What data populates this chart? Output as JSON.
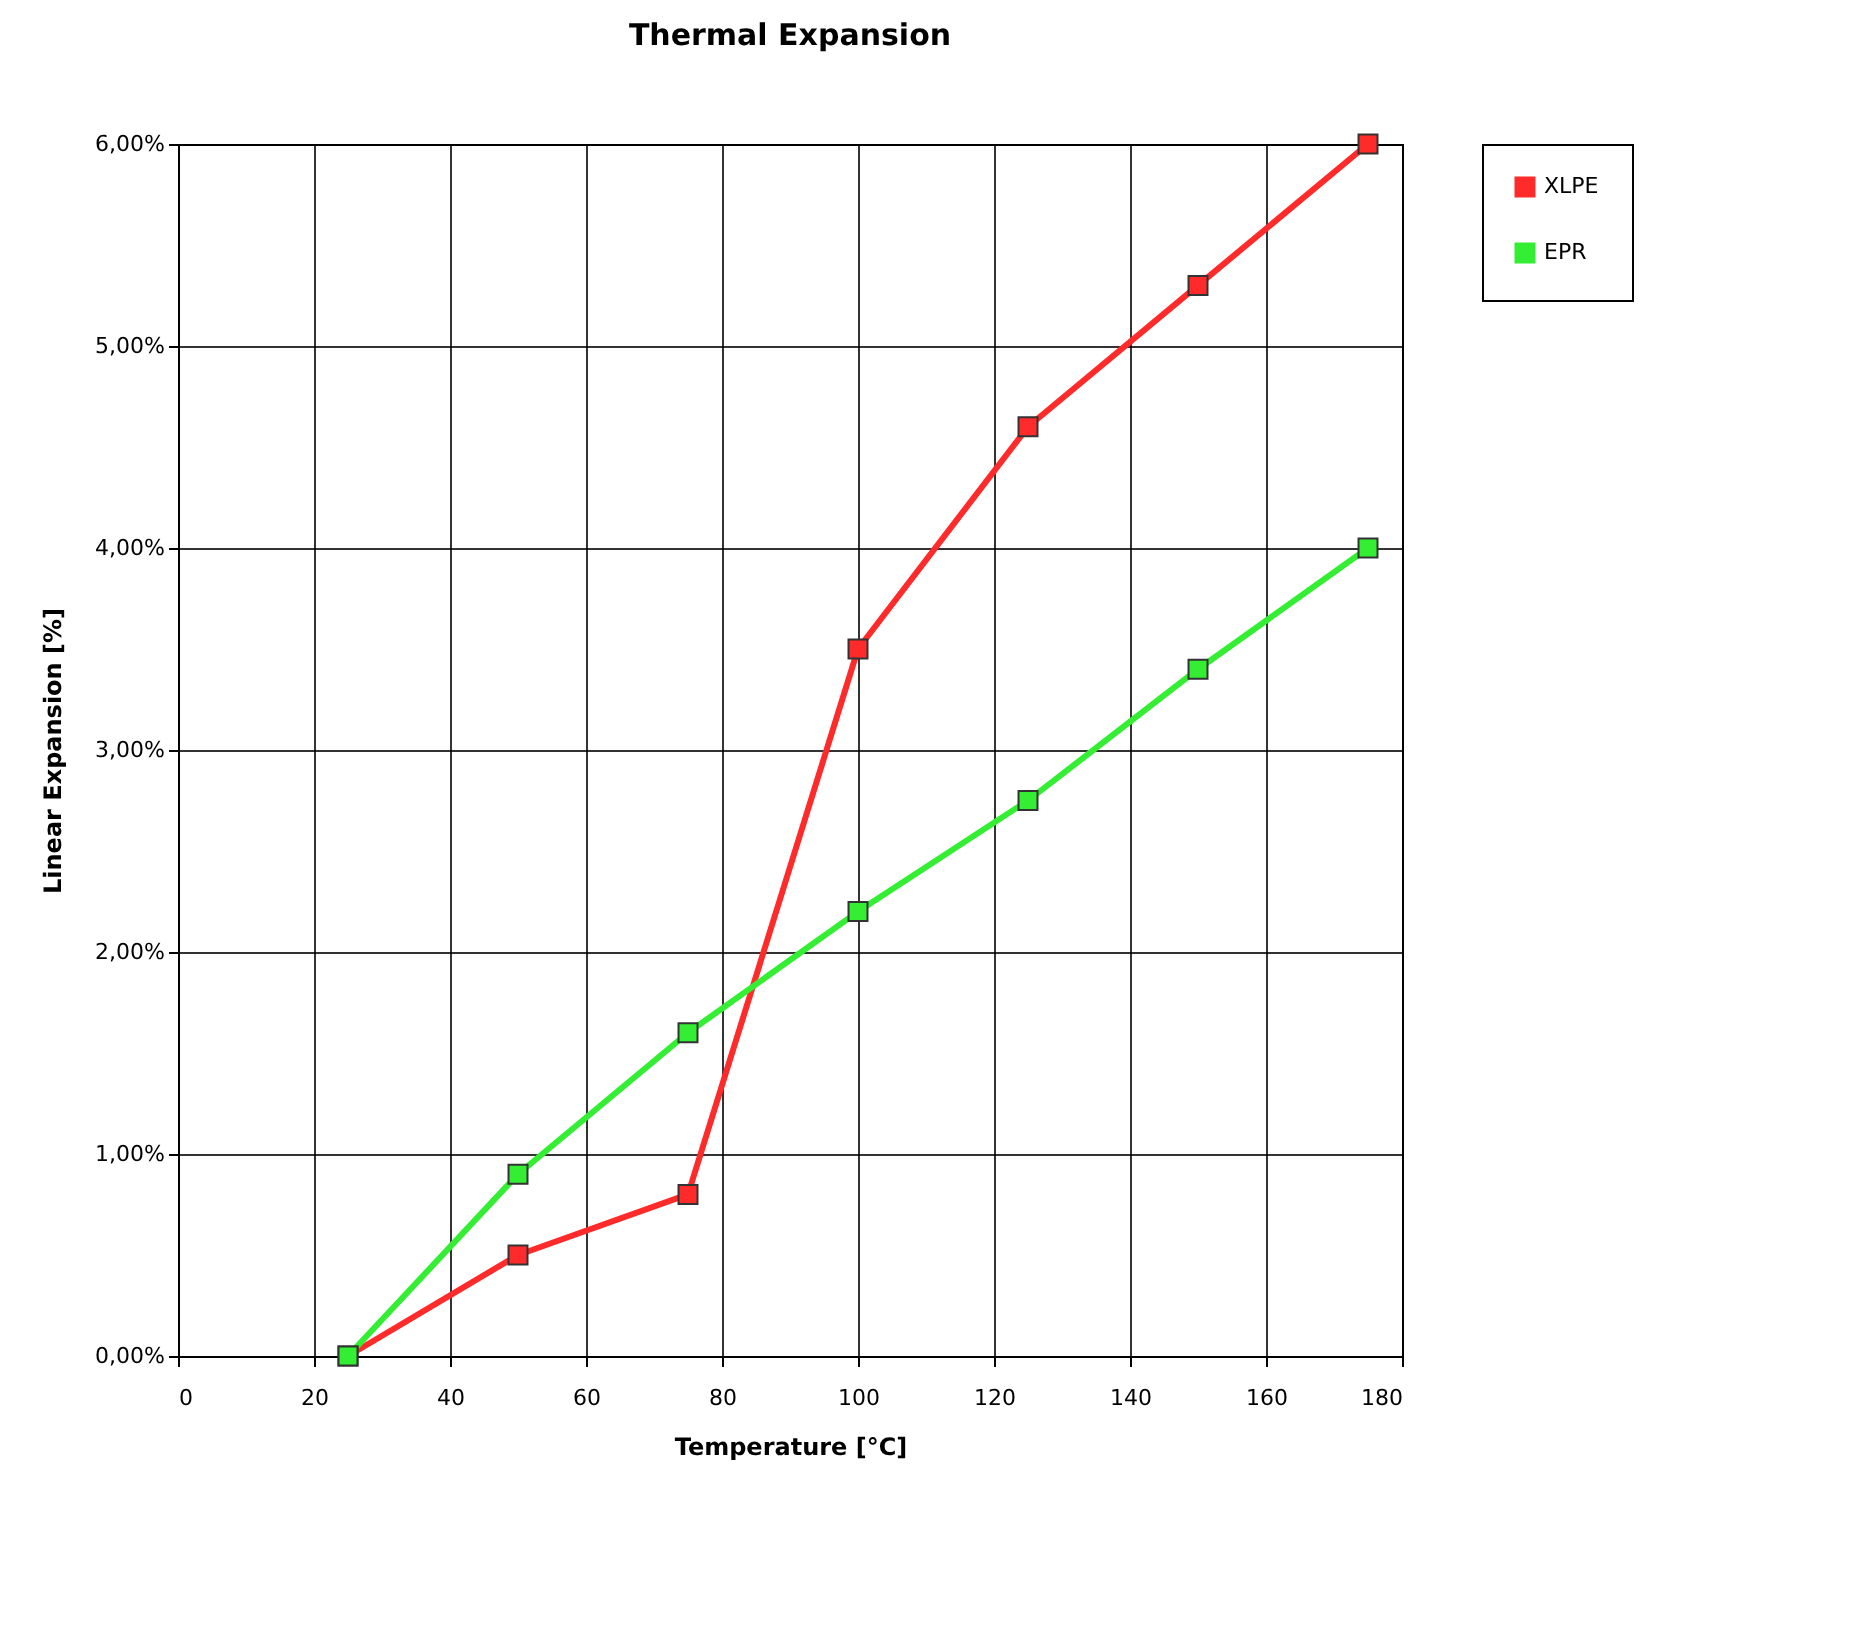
{
  "chart_data": {
    "type": "line",
    "title": "Thermal Expansion",
    "xlabel": "Temperature [°C]",
    "ylabel": "Linear Expansion [%]",
    "x": [
      25,
      50,
      75,
      100,
      125,
      150,
      175
    ],
    "series": [
      {
        "name": "XLPE",
        "color": "#ff2a2a",
        "values": [
          0,
          0.5,
          0.8,
          3.5,
          4.6,
          5.3,
          6.0
        ]
      },
      {
        "name": "EPR",
        "color": "#33ee33",
        "values": [
          0,
          0.9,
          1.6,
          2.2,
          2.75,
          3.4,
          4.0
        ]
      }
    ],
    "xlim": [
      0,
      180
    ],
    "xticks": [
      0,
      20,
      40,
      60,
      80,
      100,
      120,
      140,
      160,
      180
    ],
    "ylim": [
      0,
      6
    ],
    "yticks": [
      {
        "value": 0,
        "label": "0,00%"
      },
      {
        "value": 1,
        "label": "1,00%"
      },
      {
        "value": 2,
        "label": "2,00%"
      },
      {
        "value": 3,
        "label": "3,00%"
      },
      {
        "value": 4,
        "label": "4,00%"
      },
      {
        "value": 5,
        "label": "5,00%"
      },
      {
        "value": 6,
        "label": "6,00%"
      }
    ],
    "grid": true,
    "legend": "right",
    "marker": "square",
    "line_style": "solid"
  }
}
